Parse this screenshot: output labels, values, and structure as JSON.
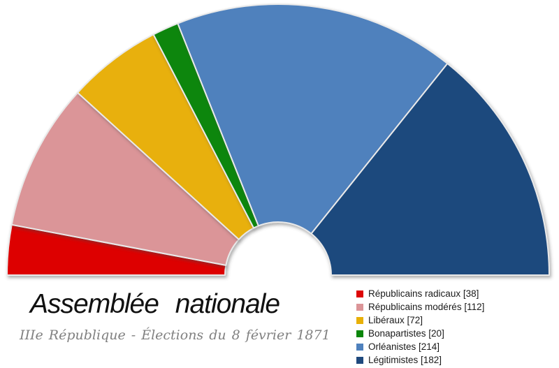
{
  "chart_data": {
    "type": "pie",
    "variant": "half-doughnut parliament seating chart (hemicycle)",
    "title": "Assemblée nationale",
    "subtitle": "IIIe République - Élections du 8 février 1871",
    "total_seats": 638,
    "categories": [
      "Républicains radicaux",
      "Républicains modérés",
      "Libéraux",
      "Bonapartistes",
      "Orléanistes",
      "Légitimistes"
    ],
    "values": [
      38,
      112,
      72,
      20,
      214,
      182
    ],
    "colors": [
      "#dd0606",
      "#db9598",
      "#e8b007",
      "#0b860b",
      "#4f81bd",
      "#1f497d"
    ],
    "legend_position": "bottom-right",
    "legend_label_format": "{name} [{seats}]",
    "start_angle_deg": 180,
    "end_angle_deg": 0,
    "separator_color": "#e9e9e9",
    "grid": false
  }
}
